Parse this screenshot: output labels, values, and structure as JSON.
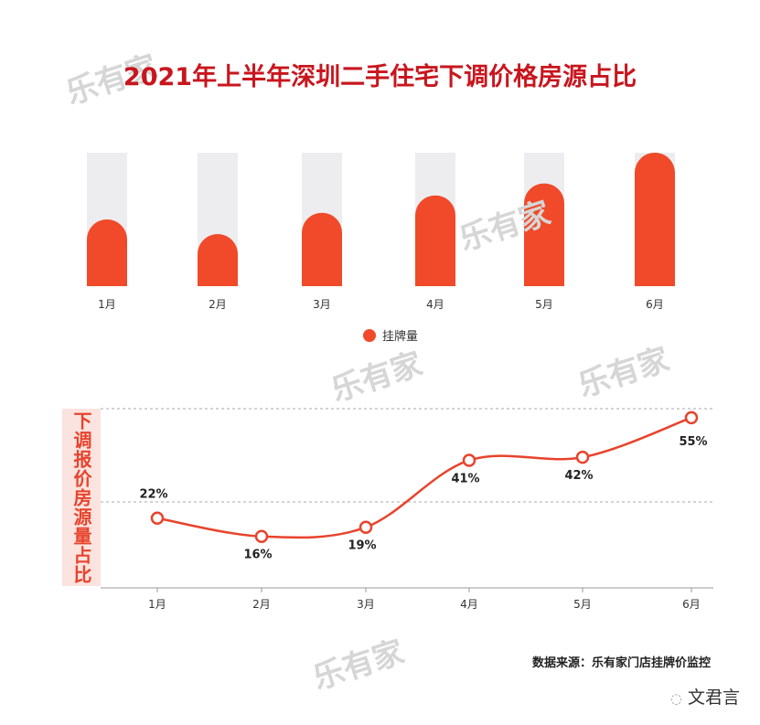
{
  "title": "2021年上半年深圳二手住宅下调价格房源占比",
  "watermark": "乐有家",
  "chart_data": [
    {
      "type": "bar",
      "categories": [
        "1月",
        "2月",
        "3月",
        "4月",
        "5月",
        "6月"
      ],
      "legend": "挂牌量",
      "legend_position": "bottom",
      "values_relative": [
        0.5,
        0.39,
        0.55,
        0.68,
        0.77,
        1.0
      ],
      "note": "no value axis shown; values relative to max",
      "colors": {
        "bar": "#f04a2a",
        "track": "#ededf0"
      }
    },
    {
      "type": "line",
      "categories": [
        "1月",
        "2月",
        "3月",
        "4月",
        "5月",
        "6月"
      ],
      "ylabel": "下调报价房源量占比",
      "values": [
        22,
        16,
        19,
        41,
        42,
        55
      ],
      "labels": [
        "22%",
        "16%",
        "19%",
        "41%",
        "42%",
        "55%"
      ],
      "unit": "%",
      "colors": {
        "line": "#e8432c"
      }
    }
  ],
  "source": "数据来源：乐有家门店挂牌价监控",
  "brand": "文君言"
}
